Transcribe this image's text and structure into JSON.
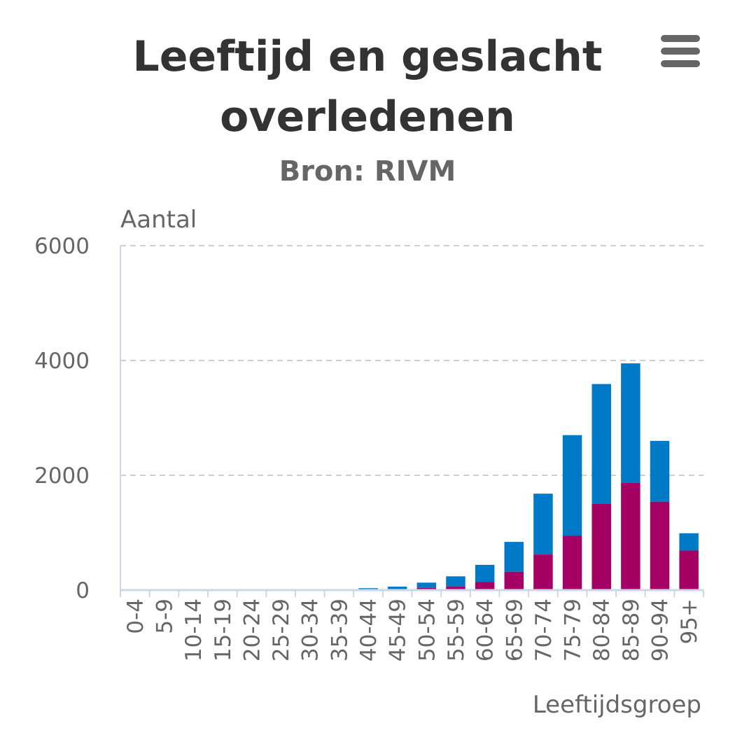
{
  "header": {
    "title_line1": "Leeftijd en geslacht",
    "title_line2": "overledenen",
    "subtitle": "Bron: RIVM"
  },
  "menu": {
    "icon": "hamburger-menu-icon"
  },
  "colors": {
    "male": "#0079c7",
    "female": "#a50063",
    "grid": "#c5d1dc",
    "axis": "#ccd6eb",
    "text": "#666666"
  },
  "chart_data": {
    "type": "bar",
    "stacked": true,
    "ylabel": "Aantal",
    "xlabel": "Leeftijdsgroep",
    "ylim": [
      0,
      6000
    ],
    "yticks": [
      0,
      2000,
      4000,
      6000
    ],
    "grid": true,
    "legend": "none",
    "categories": [
      "0-4",
      "5-9",
      "10-14",
      "15-19",
      "20-24",
      "25-29",
      "30-34",
      "35-39",
      "40-44",
      "45-49",
      "50-54",
      "55-59",
      "60-64",
      "65-69",
      "70-74",
      "75-79",
      "80-84",
      "85-89",
      "90-94",
      "95+"
    ],
    "series": [
      {
        "values": [
          0,
          0,
          1,
          1,
          2,
          3,
          4,
          6,
          14,
          20,
          40,
          60,
          140,
          320,
          620,
          950,
          1500,
          1870,
          1540,
          690
        ]
      },
      {
        "values": [
          0,
          0,
          1,
          2,
          3,
          5,
          8,
          12,
          20,
          40,
          90,
          180,
          300,
          520,
          1060,
          1750,
          2090,
          2080,
          1060,
          300
        ]
      }
    ]
  }
}
